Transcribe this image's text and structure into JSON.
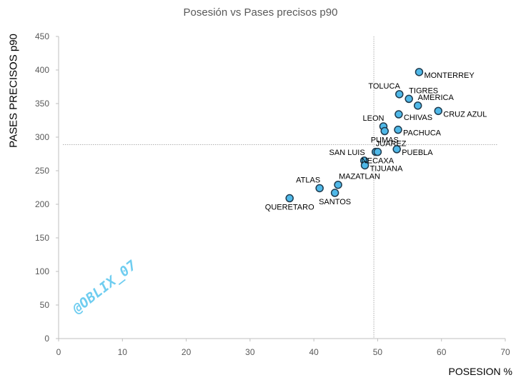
{
  "chart_data": {
    "type": "scatter",
    "title": "Posesión vs Pases precisos p90",
    "xlabel": "POSESION %",
    "ylabel": "PASES PRECISOS p90",
    "xlim": [
      0,
      70
    ],
    "ylim": [
      0,
      450
    ],
    "xticks": [
      0,
      10,
      20,
      30,
      40,
      50,
      60,
      70
    ],
    "yticks": [
      0,
      50,
      100,
      150,
      200,
      250,
      300,
      350,
      400,
      450
    ],
    "grid": false,
    "legend": "none",
    "reference_lines": {
      "x": 49.4,
      "y": 289
    },
    "marker_color": "#4fb8e8",
    "marker_edge": "#1f3a4d",
    "watermark": "@OBLIX_07",
    "points": [
      {
        "label": "MONTERREY",
        "x": 56.5,
        "y": 397,
        "pos": "right-below"
      },
      {
        "label": "TOLUCA",
        "x": 53.4,
        "y": 364,
        "pos": "left-above"
      },
      {
        "label": "TIGRES",
        "x": 54.9,
        "y": 357,
        "pos": "above"
      },
      {
        "label": "AMERICA",
        "x": 56.3,
        "y": 347,
        "pos": "above"
      },
      {
        "label": "CRUZ AZUL",
        "x": 59.5,
        "y": 339,
        "pos": "right-below"
      },
      {
        "label": "CHIVAS",
        "x": 53.3,
        "y": 334,
        "pos": "right-below"
      },
      {
        "label": "LEON",
        "x": 50.9,
        "y": 316,
        "pos": "left-above"
      },
      {
        "label": "PACHUCA",
        "x": 53.2,
        "y": 311,
        "pos": "right-below"
      },
      {
        "label": "PUMAS",
        "x": 51.1,
        "y": 309,
        "pos": "below"
      },
      {
        "label": "PUEBLA",
        "x": 53.0,
        "y": 282,
        "pos": "right-below"
      },
      {
        "label": "JUAREZ",
        "x": 49.7,
        "y": 278,
        "pos": "above"
      },
      {
        "label": "NECAXA",
        "x": 50.0,
        "y": 278,
        "pos": "below"
      },
      {
        "label": "SAN LUIS",
        "x": 47.9,
        "y": 265,
        "pos": "left-above"
      },
      {
        "label": "TIJUANA",
        "x": 48.0,
        "y": 258,
        "pos": "right-below"
      },
      {
        "label": "MAZATLAN",
        "x": 43.8,
        "y": 229,
        "pos": "right-above"
      },
      {
        "label": "ATLAS",
        "x": 40.9,
        "y": 224,
        "pos": "left-above"
      },
      {
        "label": "SANTOS",
        "x": 43.3,
        "y": 217,
        "pos": "below"
      },
      {
        "label": "QUERETARO",
        "x": 36.2,
        "y": 209,
        "pos": "below"
      }
    ]
  }
}
